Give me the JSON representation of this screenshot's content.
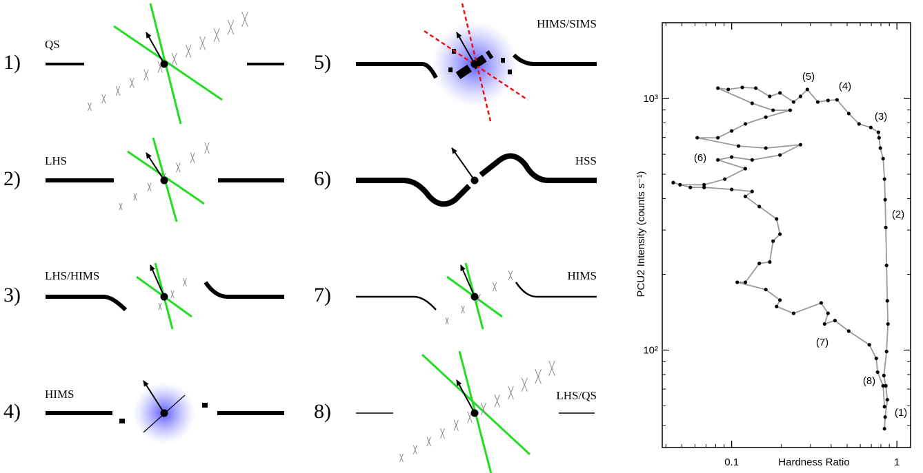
{
  "panels": [
    {
      "number": "1)",
      "state": "QS"
    },
    {
      "number": "2)",
      "state": "LHS"
    },
    {
      "number": "3)",
      "state": "LHS/HIMS"
    },
    {
      "number": "4)",
      "state": "HIMS"
    },
    {
      "number": "5)",
      "state": "HIMS/SIMS"
    },
    {
      "number": "6)",
      "state": "HSS"
    },
    {
      "number": "7)",
      "state": "HIMS"
    },
    {
      "number": "8)",
      "state": "LHS/QS"
    }
  ],
  "chart_data": {
    "type": "line",
    "xlabel": "Hardness Ratio",
    "ylabel": "PCU2 Intensity (counts s⁻¹)",
    "xscale": "log",
    "yscale": "log",
    "xlim": [
      0.038,
      1.21
    ],
    "ylim": [
      41,
      2000
    ],
    "xticks": [
      0.1,
      1
    ],
    "yticks": [
      {
        "value": 100,
        "label": "10²"
      },
      {
        "value": 1000,
        "label": "10³"
      }
    ],
    "xminorticks": [
      0.04,
      0.05,
      0.06,
      0.07,
      0.08,
      0.09,
      0.2,
      0.3,
      0.4,
      0.5,
      0.6,
      0.7,
      0.8,
      0.9
    ],
    "yminorticks": [
      50,
      60,
      70,
      80,
      90,
      200,
      300,
      400,
      500,
      600,
      700,
      800,
      900
    ],
    "x": [
      0.841,
      0.849,
      0.875,
      0.857,
      0.834,
      0.866,
      0.883,
      0.875,
      0.866,
      0.857,
      0.849,
      0.841,
      0.825,
      0.794,
      0.78,
      0.773,
      0.695,
      0.59,
      0.511,
      0.434,
      0.383,
      0.332,
      0.287,
      0.261,
      0.237,
      0.196,
      0.17,
      0.14,
      0.116,
      0.0953,
      0.0825,
      0.133,
      0.178,
      0.226,
      0.161,
      0.121,
      0.1,
      0.0825,
      0.0619,
      0.11,
      0.161,
      0.261,
      0.196,
      0.133,
      0.1,
      0.0825,
      0.121,
      0.0909,
      0.0681,
      0.0487,
      0.0443,
      0.0562,
      0.0681,
      0.1,
      0.133,
      0.121,
      0.147,
      0.187,
      0.196,
      0.178,
      0.17,
      0.147,
      0.121,
      0.108,
      0.161,
      0.196,
      0.187,
      0.237,
      0.348,
      0.383,
      0.365,
      0.422,
      0.511,
      0.681,
      0.75,
      0.764,
      0.825,
      0.841
    ],
    "series": [
      {
        "color": "#999999",
        "marker_color": "#000000",
        "values": [
          48.7,
          54.2,
          63.5,
          72.1,
          79.2,
          98.7,
          127,
          157,
          217,
          307,
          396,
          478,
          577,
          635,
          698,
          734,
          767,
          792,
          871,
          988,
          982,
          968,
          1086,
          1019,
          968,
          1052,
          1019,
          1099,
          1106,
          1086,
          1099,
          957,
          898,
          898,
          843,
          792,
          743,
          698,
          698,
          647,
          635,
          655,
          596,
          570,
          585,
          570,
          526,
          478,
          454,
          454,
          463,
          443,
          443,
          435,
          427,
          408,
          372,
          332,
          289,
          271,
          224,
          221,
          186,
          186,
          174,
          158,
          149,
          140,
          154,
          140,
          127,
          131,
          119,
          105,
          92.7,
          81.7,
          72.1,
          59.6
        ]
      }
    ],
    "annotations": [
      "(1)",
      "(2)",
      "(3)",
      "(4)",
      "(5)",
      "(6)",
      "(7)",
      "(8)"
    ]
  }
}
